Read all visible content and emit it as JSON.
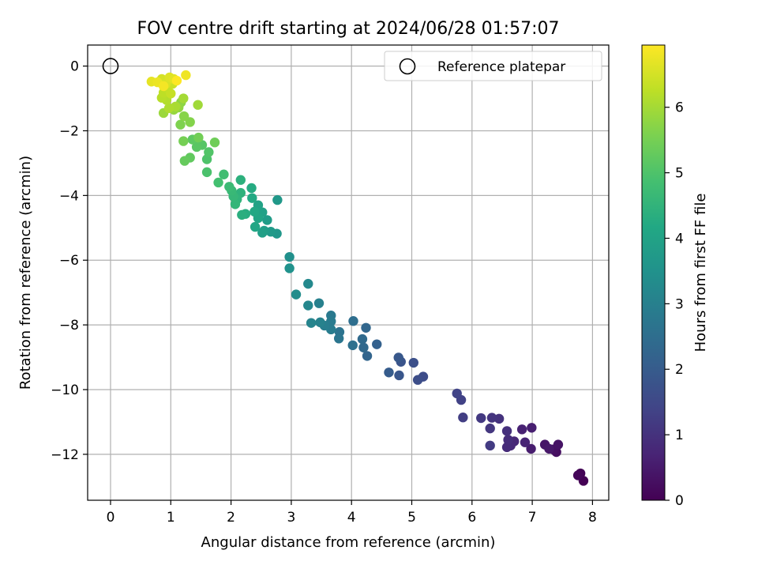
{
  "chart_data": {
    "type": "scatter",
    "title": "FOV centre drift starting at 2024/06/28 01:57:07",
    "xlabel": "Angular distance from reference (arcmin)",
    "ylabel": "Rotation from reference (arcmin)",
    "xlim": [
      -0.38,
      8.27
    ],
    "ylim": [
      -13.42,
      0.65
    ],
    "xticks": [
      0,
      1,
      2,
      3,
      4,
      5,
      6,
      7,
      8
    ],
    "yticks": [
      0,
      -2,
      -4,
      -6,
      -8,
      -10,
      -12
    ],
    "xtick_labels": [
      "0",
      "1",
      "2",
      "3",
      "4",
      "5",
      "6",
      "7",
      "8"
    ],
    "ytick_labels": [
      "0",
      "−2",
      "−4",
      "−6",
      "−8",
      "−10",
      "−12"
    ],
    "grid": true,
    "legend": {
      "position": "top-right",
      "entries": [
        "Reference platepar"
      ]
    },
    "reference_point": {
      "x": 0,
      "y": 0,
      "label": "Reference platepar"
    },
    "colorbar": {
      "label": "Hours from first FF file",
      "colormap": "viridis",
      "range": [
        0,
        6.95
      ],
      "ticks": [
        0,
        1,
        2,
        3,
        4,
        5,
        6
      ],
      "tick_labels": [
        "0",
        "1",
        "2",
        "3",
        "4",
        "5",
        "6"
      ]
    },
    "points": [
      [
        7.85,
        -12.82,
        0.0
      ],
      [
        7.8,
        -12.59,
        0.05
      ],
      [
        7.76,
        -12.65,
        0.1
      ],
      [
        7.4,
        -11.93,
        0.25
      ],
      [
        7.35,
        -11.85,
        0.3
      ],
      [
        7.43,
        -11.7,
        0.35
      ],
      [
        7.21,
        -11.7,
        0.4
      ],
      [
        7.28,
        -11.83,
        0.45
      ],
      [
        6.98,
        -11.83,
        0.55
      ],
      [
        6.99,
        -11.18,
        0.6
      ],
      [
        6.83,
        -11.23,
        0.65
      ],
      [
        6.88,
        -11.63,
        0.7
      ],
      [
        6.7,
        -11.6,
        0.75
      ],
      [
        6.64,
        -11.73,
        0.8
      ],
      [
        6.58,
        -11.78,
        0.85
      ],
      [
        6.6,
        -11.55,
        0.9
      ],
      [
        6.58,
        -11.28,
        0.95
      ],
      [
        6.45,
        -10.9,
        1.0
      ],
      [
        6.33,
        -10.87,
        1.05
      ],
      [
        6.3,
        -11.2,
        1.1
      ],
      [
        6.15,
        -10.88,
        1.15
      ],
      [
        6.3,
        -11.73,
        1.2
      ],
      [
        5.85,
        -10.86,
        1.25
      ],
      [
        5.82,
        -10.32,
        1.35
      ],
      [
        5.75,
        -10.12,
        1.4
      ],
      [
        5.19,
        -9.6,
        1.6
      ],
      [
        5.1,
        -9.7,
        1.65
      ],
      [
        5.03,
        -9.17,
        1.7
      ],
      [
        4.82,
        -9.14,
        1.8
      ],
      [
        4.79,
        -9.56,
        1.85
      ],
      [
        4.78,
        -9.01,
        1.9
      ],
      [
        4.62,
        -9.47,
        2.0
      ],
      [
        4.42,
        -8.6,
        2.15
      ],
      [
        4.26,
        -8.96,
        2.25
      ],
      [
        4.24,
        -8.09,
        2.3
      ],
      [
        4.2,
        -8.7,
        2.35
      ],
      [
        4.18,
        -8.44,
        2.4
      ],
      [
        4.03,
        -7.88,
        2.5
      ],
      [
        4.02,
        -8.63,
        2.55
      ],
      [
        3.8,
        -8.22,
        2.65
      ],
      [
        3.79,
        -8.42,
        2.7
      ],
      [
        3.66,
        -7.71,
        2.8
      ],
      [
        3.66,
        -7.89,
        2.85
      ],
      [
        3.66,
        -8.14,
        2.9
      ],
      [
        3.55,
        -8.02,
        2.95
      ],
      [
        3.46,
        -7.33,
        3.0
      ],
      [
        3.48,
        -7.92,
        3.05
      ],
      [
        3.33,
        -7.94,
        3.1
      ],
      [
        3.28,
        -7.4,
        3.2
      ],
      [
        3.28,
        -6.73,
        3.25
      ],
      [
        3.08,
        -7.06,
        3.35
      ],
      [
        2.97,
        -5.9,
        3.45
      ],
      [
        2.97,
        -6.25,
        3.5
      ],
      [
        2.76,
        -5.18,
        3.65
      ],
      [
        2.77,
        -4.14,
        3.7
      ],
      [
        2.66,
        -5.12,
        3.75
      ],
      [
        2.6,
        -4.76,
        3.8
      ],
      [
        2.55,
        -5.09,
        3.85
      ],
      [
        2.52,
        -5.15,
        3.9
      ],
      [
        2.52,
        -4.52,
        3.95
      ],
      [
        2.45,
        -4.3,
        4.0
      ],
      [
        2.45,
        -4.7,
        4.05
      ],
      [
        2.4,
        -4.97,
        4.1
      ],
      [
        2.39,
        -4.5,
        4.15
      ],
      [
        2.35,
        -4.08,
        4.2
      ],
      [
        2.34,
        -3.77,
        4.25
      ],
      [
        2.24,
        -4.57,
        4.3
      ],
      [
        2.18,
        -4.6,
        4.35
      ],
      [
        2.16,
        -3.52,
        4.4
      ],
      [
        2.16,
        -3.92,
        4.45
      ],
      [
        2.1,
        -4.12,
        4.5
      ],
      [
        2.07,
        -4.27,
        4.55
      ],
      [
        2.04,
        -4.03,
        4.6
      ],
      [
        2.01,
        -3.85,
        4.65
      ],
      [
        1.97,
        -3.73,
        4.7
      ],
      [
        1.88,
        -3.35,
        4.8
      ],
      [
        1.79,
        -3.6,
        4.85
      ],
      [
        1.6,
        -3.28,
        4.95
      ],
      [
        1.6,
        -2.88,
        5.0
      ],
      [
        1.63,
        -2.66,
        5.05
      ],
      [
        1.52,
        -2.44,
        5.1
      ],
      [
        1.43,
        -2.5,
        5.15
      ],
      [
        1.36,
        -2.27,
        5.2
      ],
      [
        1.32,
        -2.83,
        5.25
      ],
      [
        1.23,
        -2.93,
        5.3
      ],
      [
        1.73,
        -2.36,
        5.4
      ],
      [
        1.46,
        -2.21,
        5.45
      ],
      [
        1.21,
        -2.32,
        5.5
      ],
      [
        1.16,
        -1.81,
        5.6
      ],
      [
        1.32,
        -1.73,
        5.65
      ],
      [
        1.22,
        -1.55,
        5.7
      ],
      [
        1.17,
        -1.12,
        5.75
      ],
      [
        1.13,
        -1.28,
        5.8
      ],
      [
        1.05,
        -1.35,
        5.85
      ],
      [
        0.88,
        -1.45,
        5.9
      ],
      [
        1.45,
        -1.2,
        5.95
      ],
      [
        1.21,
        -1.0,
        6.0
      ],
      [
        1.08,
        -1.25,
        6.05
      ],
      [
        0.97,
        -1.3,
        6.1
      ],
      [
        0.93,
        -1.05,
        6.15
      ],
      [
        0.85,
        -0.98,
        6.2
      ],
      [
        0.88,
        -0.82,
        6.25
      ],
      [
        0.95,
        -0.7,
        6.3
      ],
      [
        1.0,
        -0.85,
        6.35
      ],
      [
        1.03,
        -0.55,
        6.4
      ],
      [
        0.95,
        -0.45,
        6.45
      ],
      [
        0.85,
        -0.4,
        6.5
      ],
      [
        0.92,
        -0.55,
        6.55
      ],
      [
        0.98,
        -0.35,
        6.6
      ],
      [
        1.05,
        -0.4,
        6.65
      ],
      [
        0.68,
        -0.48,
        6.7
      ],
      [
        0.78,
        -0.5,
        6.75
      ],
      [
        1.25,
        -0.28,
        6.8
      ],
      [
        0.88,
        -0.62,
        6.85
      ],
      [
        1.1,
        -0.45,
        6.95
      ]
    ]
  }
}
